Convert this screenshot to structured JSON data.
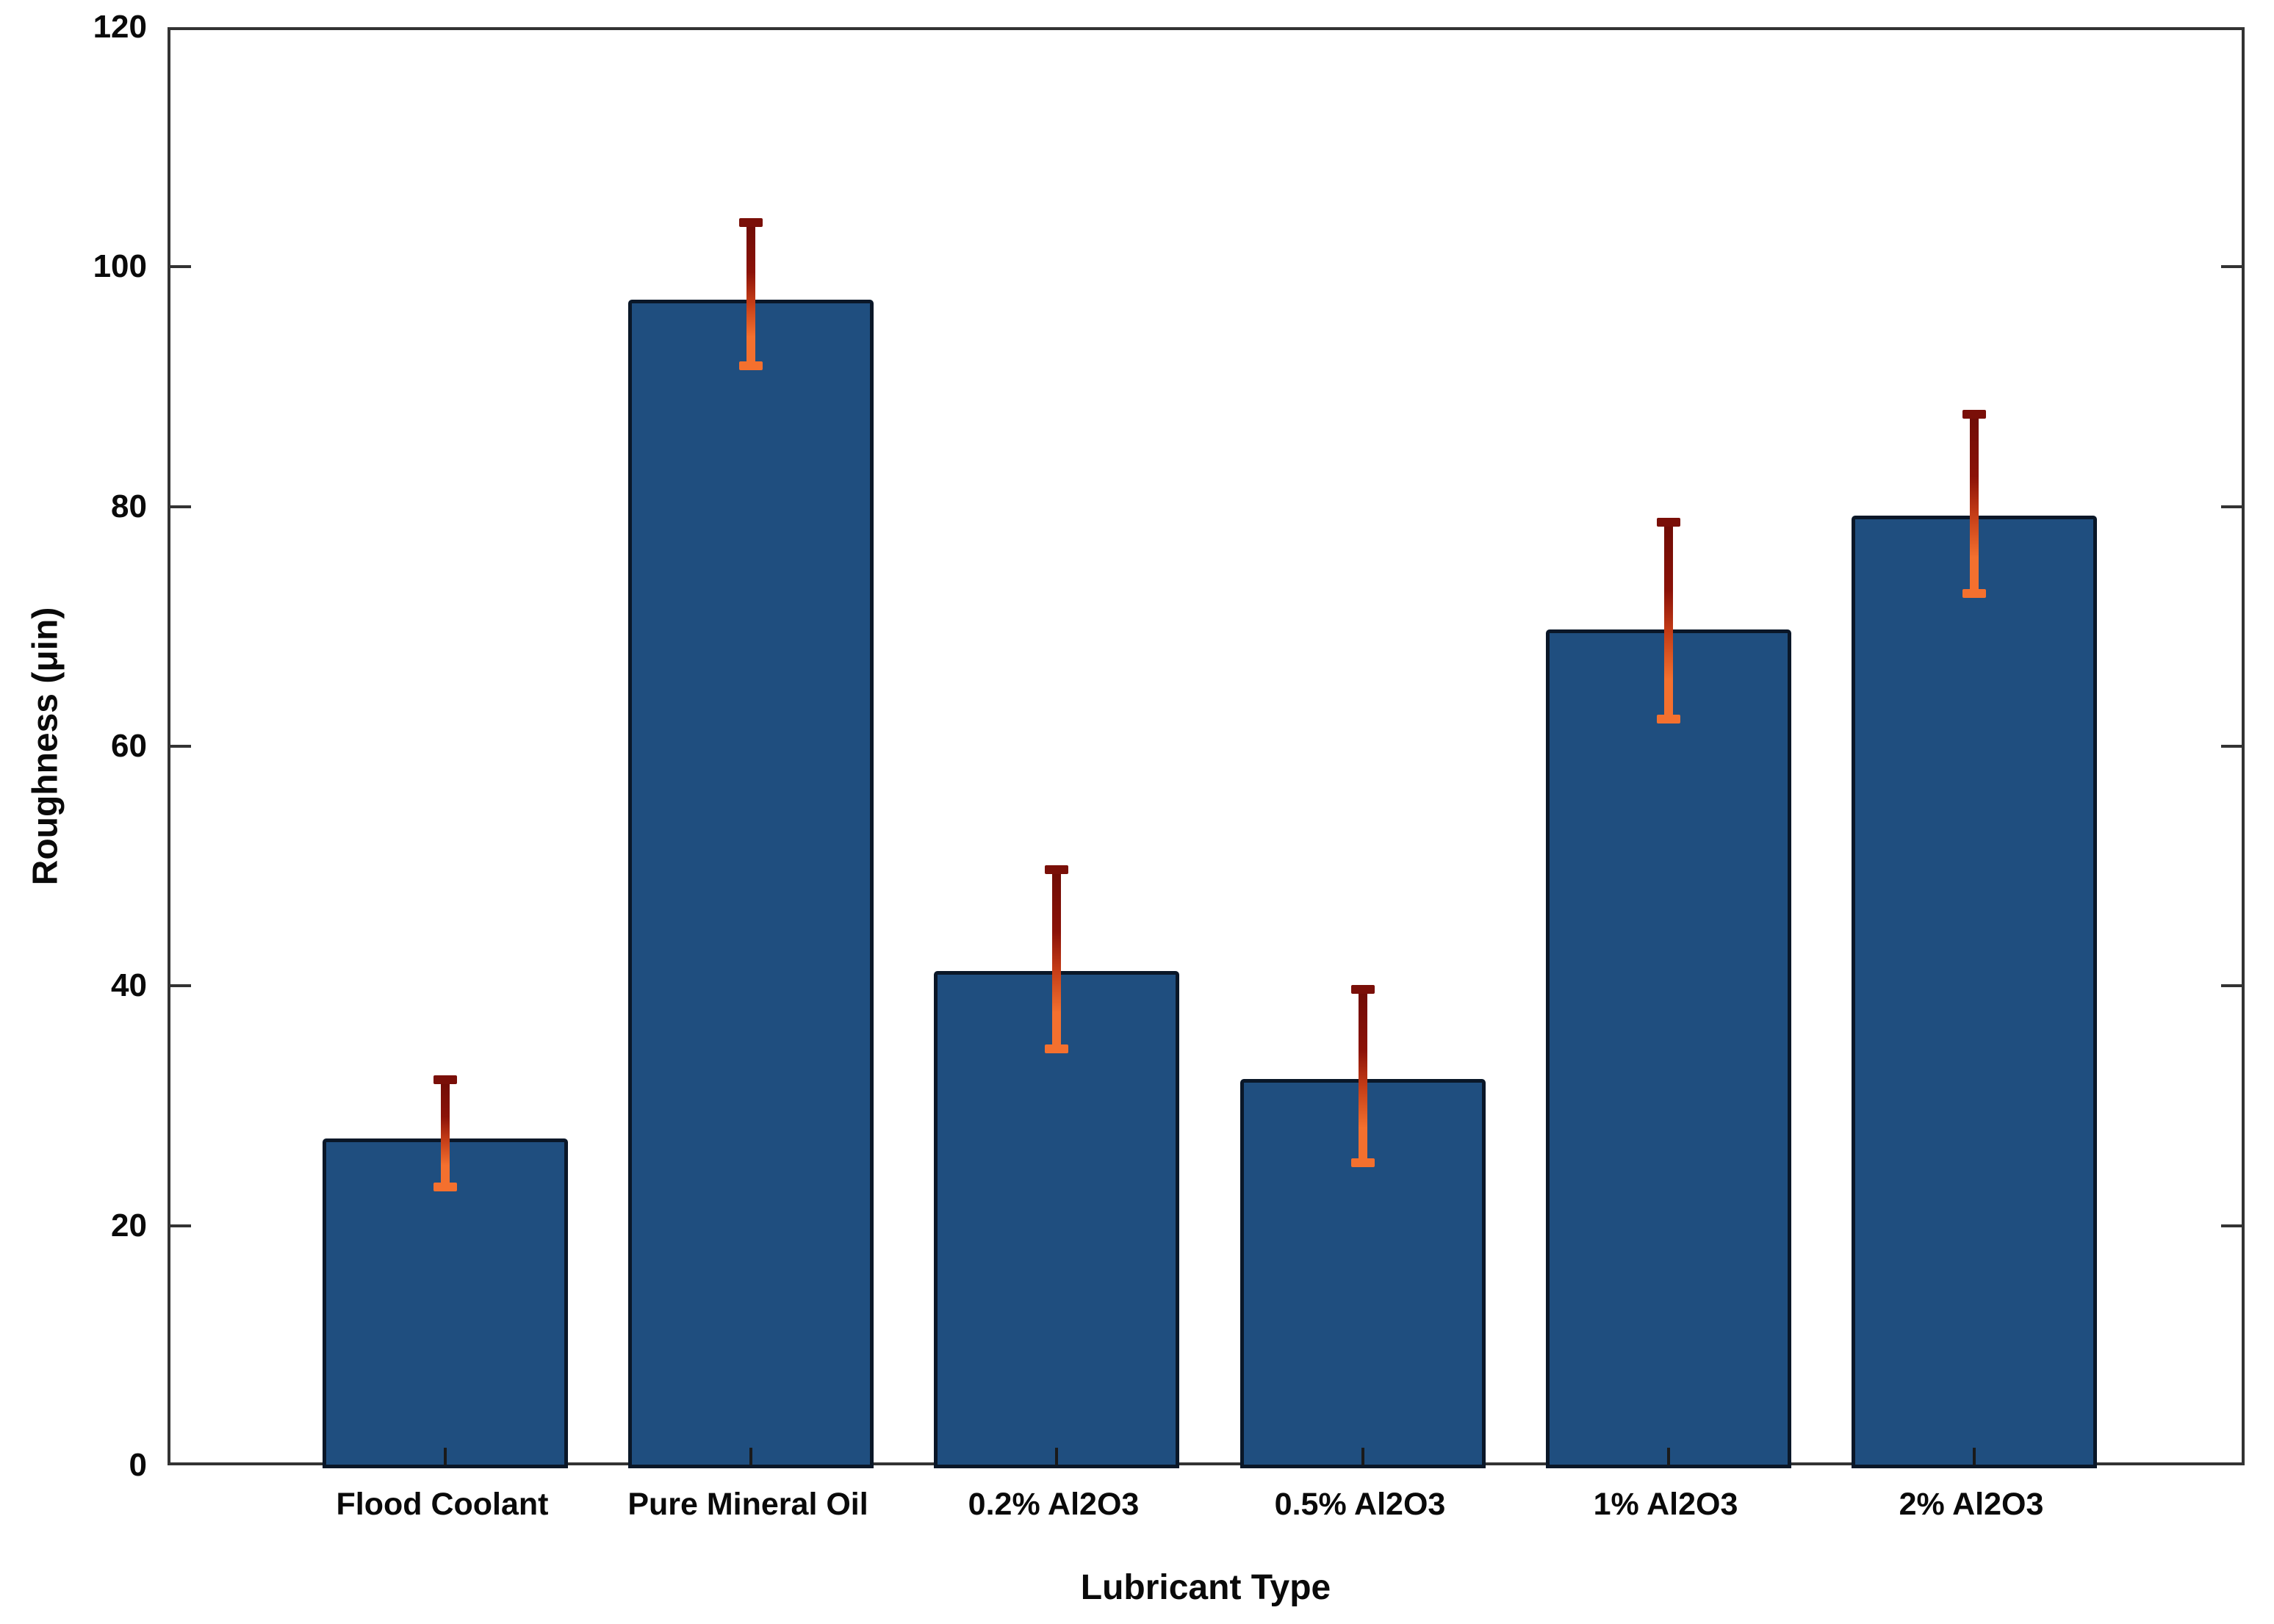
{
  "chart_data": {
    "type": "bar",
    "title": "",
    "xlabel": "Lubricant Type",
    "ylabel": "Roughness (μin)",
    "categories": [
      "Flood Coolant",
      "Pure Mineral Oil",
      "0.2% Al2O3",
      "0.5% Al2O3",
      "1% Al2O3",
      "2% Al2O3"
    ],
    "values": [
      27.5,
      97.5,
      41.5,
      32.5,
      70,
      79.5
    ],
    "error_low": [
      23.5,
      92,
      35,
      25.5,
      62.5,
      73
    ],
    "error_high": [
      32.5,
      104,
      50,
      40,
      79,
      88
    ],
    "ylim": [
      0,
      120
    ],
    "yticks": [
      0,
      20,
      40,
      60,
      80,
      100,
      120
    ],
    "grid": false,
    "legend_position": "none",
    "bar_color": "#1F4E7F",
    "bar_edge_color": "#0A1728",
    "error_bar_top_color": "#7A0F08",
    "error_bar_bottom_color": "#F4702E",
    "axis_color": "#333333",
    "text_color": "#0a0a0a"
  }
}
